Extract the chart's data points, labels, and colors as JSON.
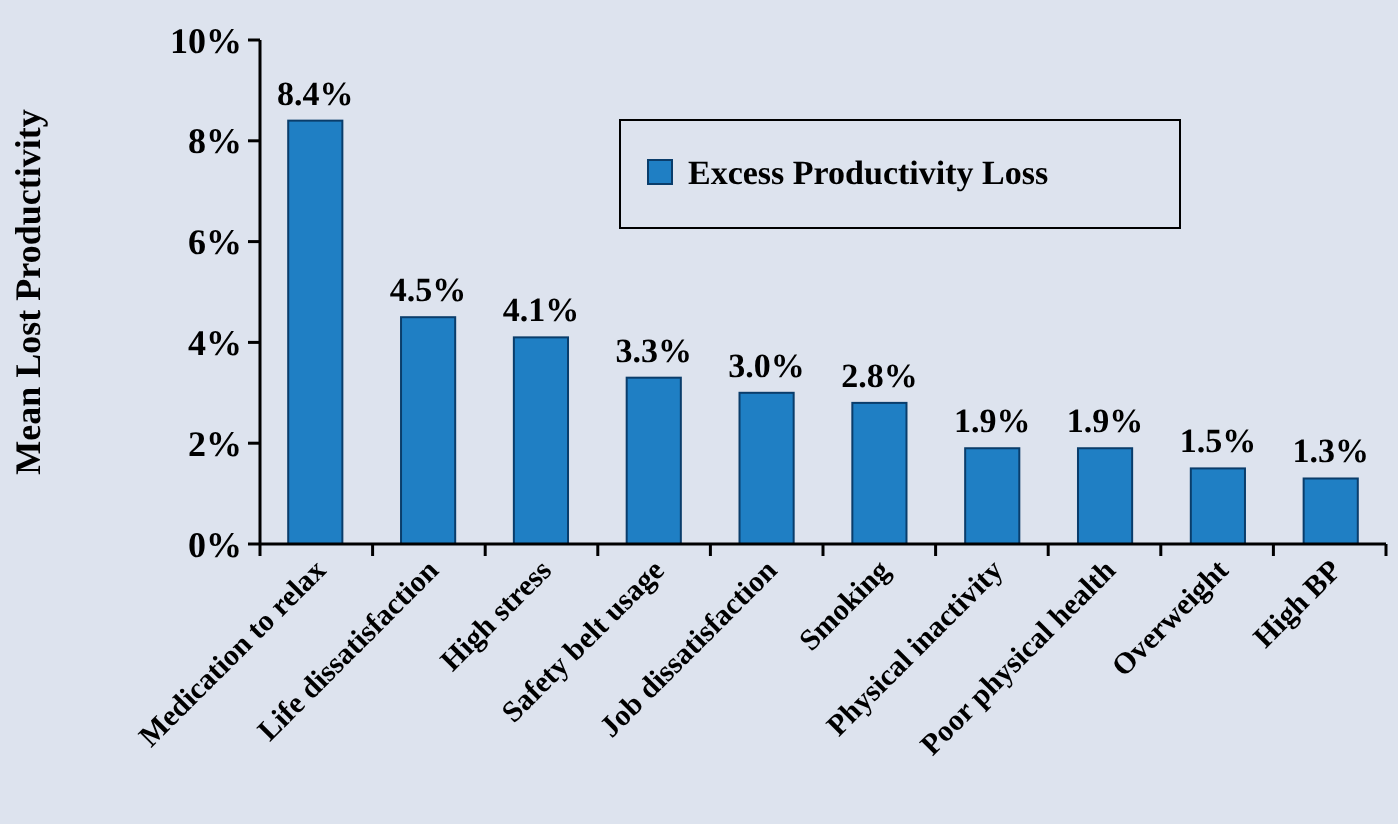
{
  "chart_data": {
    "type": "bar",
    "ylabel": "Mean Lost Productivity",
    "categories": [
      "Medication to relax",
      "Life dissatisfaction",
      "High stress",
      "Safety belt usage",
      "Job dissatisfaction",
      "Smoking",
      "Physical inactivity",
      "Poor physical health",
      "Overweight",
      "High BP"
    ],
    "series": [
      {
        "name": "Excess Productivity Loss",
        "color": "#1f7fc4",
        "values": [
          8.4,
          4.5,
          4.1,
          3.3,
          3.0,
          2.8,
          1.9,
          1.9,
          1.5,
          1.3
        ],
        "value_labels": [
          "8.4%",
          "4.5%",
          "4.1%",
          "3.3%",
          "3.0%",
          "2.8%",
          "1.9%",
          "1.9%",
          "1.5%",
          "1.3%"
        ]
      }
    ],
    "ylim": [
      0,
      10
    ],
    "yticks": [
      {
        "value": 0,
        "label": "0%"
      },
      {
        "value": 2,
        "label": "2%"
      },
      {
        "value": 4,
        "label": "4%"
      },
      {
        "value": 6,
        "label": "6%"
      },
      {
        "value": 8,
        "label": "8%"
      },
      {
        "value": 10,
        "label": "10%"
      }
    ],
    "grid": false,
    "legend": "top right"
  }
}
